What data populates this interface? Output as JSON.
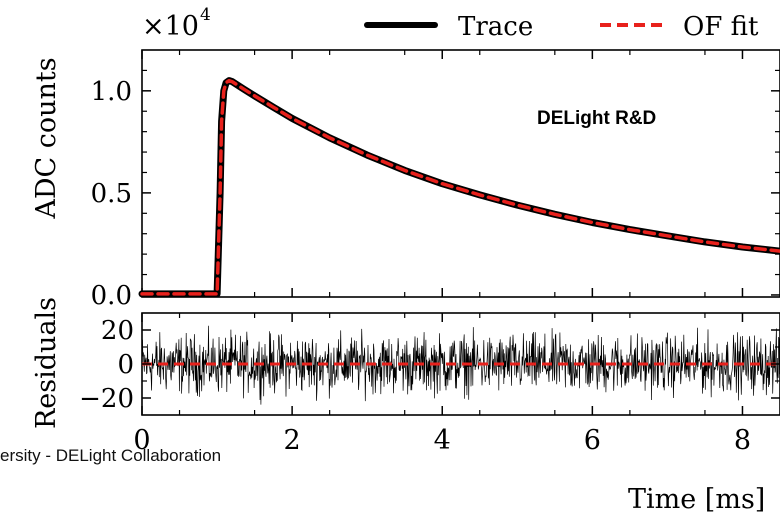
{
  "footer_text": "ersity - DELight Collaboration",
  "chart_data": [
    {
      "type": "line",
      "panel": "main",
      "annotation": "DELight R&D",
      "multiplier_label": "×10",
      "multiplier_exp": "4",
      "xlabel": "Time [ms]",
      "ylabel": "ADC counts",
      "xlim": [
        0,
        8.5
      ],
      "ylim": [
        -0.01,
        1.2
      ],
      "yticks": [
        0.0,
        0.5,
        1.0
      ],
      "ytick_labels": [
        "0.0",
        "0.5",
        "1.0"
      ],
      "legend": {
        "placement": "top-right"
      },
      "series": [
        {
          "name": "Trace",
          "style": "solid",
          "color": "#000000",
          "x": [
            0,
            0.5,
            1.0,
            1.04,
            1.06,
            1.09,
            1.12,
            1.16,
            1.2,
            1.35,
            1.5,
            1.75,
            2.0,
            2.5,
            3.0,
            3.5,
            4.0,
            4.5,
            5.0,
            5.5,
            6.0,
            6.5,
            7.0,
            7.5,
            8.0,
            8.5
          ],
          "y": [
            0.005,
            0.005,
            0.005,
            0.5,
            0.85,
            1.0,
            1.04,
            1.05,
            1.045,
            1.01,
            0.975,
            0.92,
            0.865,
            0.77,
            0.685,
            0.61,
            0.545,
            0.49,
            0.44,
            0.395,
            0.355,
            0.32,
            0.29,
            0.26,
            0.235,
            0.215
          ]
        },
        {
          "name": "OF fit",
          "style": "dashed",
          "color": "#e8211c",
          "x": [
            0,
            0.5,
            1.0,
            1.04,
            1.06,
            1.09,
            1.12,
            1.16,
            1.2,
            1.35,
            1.5,
            1.75,
            2.0,
            2.5,
            3.0,
            3.5,
            4.0,
            4.5,
            5.0,
            5.5,
            6.0,
            6.5,
            7.0,
            7.5,
            8.0,
            8.5
          ],
          "y": [
            0.005,
            0.005,
            0.005,
            0.5,
            0.85,
            1.0,
            1.04,
            1.05,
            1.045,
            1.01,
            0.975,
            0.92,
            0.865,
            0.77,
            0.685,
            0.61,
            0.545,
            0.49,
            0.44,
            0.395,
            0.355,
            0.32,
            0.29,
            0.26,
            0.235,
            0.215
          ]
        }
      ]
    },
    {
      "type": "line",
      "panel": "residuals",
      "xlabel": "Time [ms]",
      "ylabel": "Residuals",
      "xlim": [
        0,
        8.5
      ],
      "ylim": [
        -30,
        30
      ],
      "xticks": [
        0,
        2,
        4,
        6,
        8
      ],
      "xtick_labels": [
        "0",
        "2",
        "4",
        "6",
        "8"
      ],
      "yticks": [
        20,
        0,
        -20
      ],
      "ytick_labels": [
        "20",
        "0",
        "−20"
      ],
      "series": [
        {
          "name": "",
          "style": "noise",
          "color": "#000000",
          "amplitude": 14,
          "x_range": [
            0,
            8.5
          ],
          "y_mean": 0
        },
        {
          "name": "",
          "style": "dashed",
          "color": "#e8211c",
          "x": [
            0,
            8.5
          ],
          "y": [
            0,
            0
          ]
        }
      ]
    }
  ]
}
